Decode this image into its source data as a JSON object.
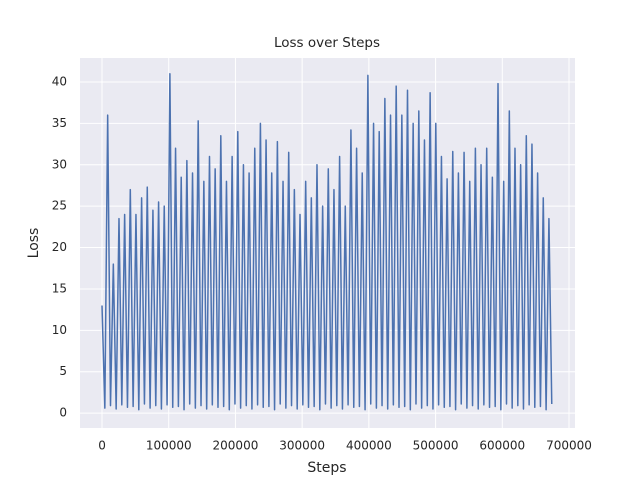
{
  "chart_data": {
    "type": "line",
    "title": "Loss over Steps",
    "x_label": "Steps",
    "y_label": "Loss",
    "x": [
      0,
      4240,
      8480,
      12720,
      16960,
      21200,
      25440,
      29680,
      33920,
      38160,
      42400,
      46640,
      50880,
      55120,
      59360,
      63600,
      67840,
      72080,
      76320,
      80560,
      84800,
      89040,
      93280,
      97520,
      101760,
      106000,
      110240,
      114480,
      118720,
      122960,
      127200,
      131440,
      135680,
      139920,
      144160,
      148400,
      152640,
      156880,
      161120,
      165360,
      169600,
      173840,
      178080,
      182320,
      186560,
      190800,
      195040,
      199280,
      203520,
      207760,
      212000,
      216240,
      220480,
      224720,
      228960,
      233200,
      237440,
      241680,
      245920,
      250160,
      254400,
      258640,
      262880,
      267120,
      271360,
      275600,
      279840,
      284080,
      288320,
      292560,
      296800,
      301040,
      305280,
      309520,
      313760,
      318000,
      322240,
      326480,
      330720,
      334960,
      339200,
      343440,
      347680,
      351920,
      356160,
      360400,
      364640,
      368880,
      373120,
      377360,
      381600,
      385840,
      390080,
      394320,
      398560,
      402800,
      407040,
      411280,
      415520,
      419760,
      424000,
      428240,
      432480,
      436720,
      440960,
      445200,
      449440,
      453680,
      457920,
      462160,
      466400,
      470640,
      474880,
      479120,
      483360,
      487600,
      491840,
      496080,
      500320,
      504560,
      508800,
      513040,
      517280,
      521520,
      525760,
      530000,
      534240,
      538480,
      542720,
      546960,
      551200,
      555440,
      559680,
      563920,
      568160,
      572400,
      576640,
      580880,
      585120,
      589360,
      593600,
      597840,
      602080,
      606320,
      610560,
      614800,
      619040,
      623280,
      627520,
      631760,
      636000,
      640240,
      644480,
      648720,
      652960,
      657200,
      661440,
      665680,
      669920,
      674160
    ],
    "series": [
      {
        "name": "Loss",
        "color": "#4c72b0",
        "values": [
          13,
          0.6,
          36,
          0.9,
          18,
          0.5,
          23.5,
          1.0,
          24,
          0.7,
          27,
          0.8,
          24,
          0.4,
          26,
          1.1,
          27.3,
          0.6,
          24.5,
          0.9,
          25.5,
          0.5,
          25,
          1.0,
          41,
          0.7,
          32,
          0.8,
          28.5,
          0.4,
          30.5,
          1.1,
          29,
          0.6,
          35.3,
          0.9,
          28,
          0.5,
          31,
          1.0,
          29.5,
          0.7,
          33.5,
          0.8,
          28,
          0.4,
          31,
          1.1,
          34,
          0.6,
          30,
          0.9,
          29,
          0.5,
          32,
          1.0,
          35,
          0.7,
          33,
          0.8,
          29,
          0.4,
          32.8,
          1.1,
          28,
          0.6,
          31.5,
          0.9,
          27,
          0.5,
          24,
          1.0,
          28,
          0.7,
          26,
          0.8,
          30,
          0.4,
          25,
          1.1,
          29.5,
          0.6,
          27,
          0.9,
          31,
          0.5,
          25,
          1.0,
          34.2,
          0.7,
          32,
          0.8,
          29,
          0.4,
          40.8,
          1.1,
          35,
          0.6,
          34,
          0.9,
          38,
          0.5,
          36,
          1.0,
          39.5,
          0.7,
          36,
          0.8,
          39,
          0.4,
          35,
          1.1,
          36.5,
          0.6,
          33,
          0.9,
          38.7,
          0.5,
          35,
          1.0,
          31,
          0.7,
          28.3,
          0.8,
          31.6,
          0.4,
          29,
          1.1,
          31.5,
          0.6,
          28,
          0.9,
          32,
          0.5,
          30,
          1.0,
          32,
          0.7,
          28.5,
          0.8,
          39.8,
          0.4,
          28,
          1.1,
          36.5,
          0.6,
          32,
          0.9,
          30,
          0.5,
          33.5,
          1.0,
          32.5,
          0.7,
          29,
          0.8,
          26,
          0.4,
          23.5,
          1.1
        ]
      }
    ],
    "xlim": [
      -33000,
      709000
    ],
    "ylim": [
      -1.8,
      42.9
    ],
    "xticks": [
      0,
      100000,
      200000,
      300000,
      400000,
      500000,
      600000,
      700000
    ],
    "yticks": [
      0,
      5,
      10,
      15,
      20,
      25,
      30,
      35,
      40
    ],
    "grid": true,
    "background": "#eaeaf2"
  }
}
